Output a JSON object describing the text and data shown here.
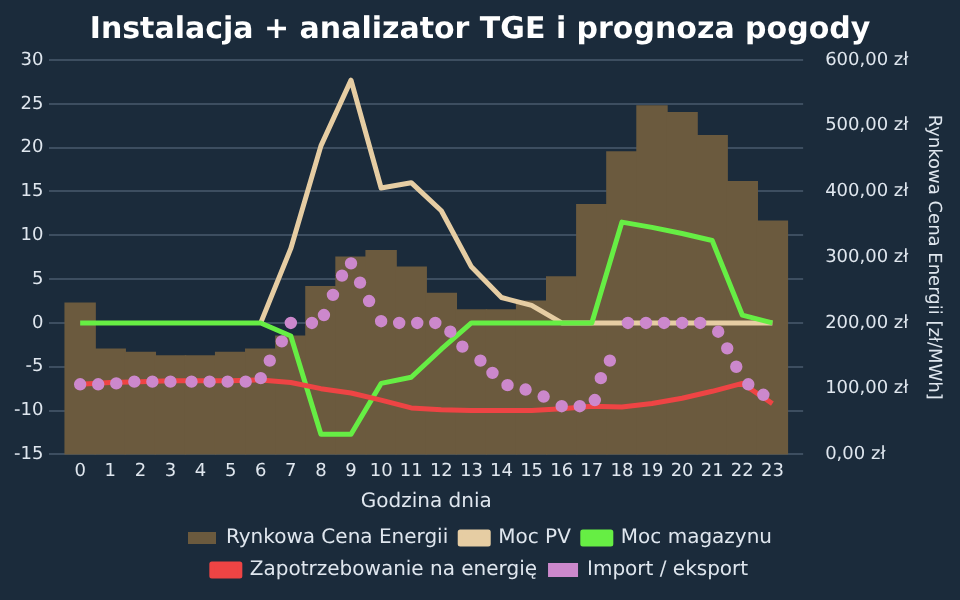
{
  "chart_data": {
    "type": "line",
    "title": "Instalacja + analizator TGE i prognoza pogody",
    "xlabel": "Godzina dnia",
    "y2label": "Rynkowa Cena Energii [zł/MWh]",
    "x": [
      0,
      1,
      2,
      3,
      4,
      5,
      6,
      7,
      8,
      9,
      10,
      11,
      12,
      13,
      14,
      15,
      16,
      17,
      18,
      19,
      20,
      21,
      22,
      23
    ],
    "xlim": [
      -0.5,
      23.5
    ],
    "xticks": [
      0,
      1,
      2,
      3,
      4,
      5,
      6,
      7,
      8,
      9,
      10,
      11,
      12,
      13,
      14,
      15,
      16,
      17,
      18,
      19,
      20,
      21,
      22,
      23
    ],
    "ylim": [
      -15,
      30
    ],
    "yticks": [
      -15,
      -10,
      -5,
      0,
      5,
      10,
      15,
      20,
      25,
      30
    ],
    "y2lim": [
      0,
      600
    ],
    "y2ticks": [
      {
        "value": 0,
        "label": "0,00 zł"
      },
      {
        "value": 100,
        "label": "100,00 zł"
      },
      {
        "value": 200,
        "label": "200,00 zł"
      },
      {
        "value": 300,
        "label": "300,00 zł"
      },
      {
        "value": 400,
        "label": "400,00 zł"
      },
      {
        "value": 500,
        "label": "500,00 zł"
      },
      {
        "value": 600,
        "label": "600,00 zł"
      }
    ],
    "grid": "y",
    "legend": "bottom",
    "series": [
      {
        "name": "Rynkowa Cena Energii",
        "type": "bar",
        "axis": "y2",
        "color": "#6b5a3e",
        "values": [
          230,
          160,
          155,
          150,
          150,
          155,
          160,
          180,
          255,
          300,
          310,
          285,
          245,
          220,
          220,
          233,
          270,
          380,
          460,
          530,
          520,
          485,
          415,
          355
        ]
      },
      {
        "name": "Moc PV",
        "marker": "none",
        "color": "#e6cda3",
        "values": [
          null,
          null,
          null,
          null,
          null,
          null,
          0,
          8.5,
          20.2,
          27.7,
          15.4,
          16,
          12.8,
          6.4,
          2.9,
          2,
          0,
          0,
          0,
          0,
          0,
          0,
          0,
          0
        ]
      },
      {
        "name": "Moc magazynu",
        "marker": "none",
        "color": "#66ee44",
        "values": [
          0,
          0,
          0,
          0,
          0,
          0,
          0,
          -1.5,
          -12.7,
          -12.7,
          -6.9,
          -6.2,
          -3,
          0,
          0,
          0,
          0,
          0,
          11.5,
          10.9,
          10.2,
          9.4,
          0.9,
          0
        ]
      },
      {
        "name": "Zapotrzebowanie na energię",
        "marker": "none",
        "color": "#ee4444",
        "values": [
          -7,
          -6.8,
          -6.7,
          -6.6,
          -6.6,
          -6.6,
          -6.5,
          -6.8,
          -7.5,
          -8,
          -8.8,
          -9.7,
          -9.9,
          -10,
          -10,
          -10,
          -9.8,
          -9.5,
          -9.6,
          -9.2,
          -8.6,
          -7.8,
          -6.9,
          -9.2
        ]
      },
      {
        "name": "Import / eksport",
        "type": "scatter",
        "marker": "circle",
        "color": "#cc88cc",
        "x": [
          0,
          0.6,
          1.2,
          1.8,
          2.4,
          3,
          3.7,
          4.3,
          4.9,
          5.5,
          6,
          6.3,
          6.7,
          7,
          7.7,
          8.1,
          8.4,
          8.7,
          9,
          9.3,
          9.6,
          10,
          10.6,
          11.2,
          11.8,
          12.3,
          12.7,
          13.3,
          13.7,
          14.2,
          14.8,
          15.4,
          16,
          16.6,
          17.1,
          17.3,
          17.6,
          18.2,
          18.8,
          19.4,
          20,
          20.6,
          21.2,
          21.5,
          21.8,
          22.2,
          22.7
        ],
        "values": [
          -7,
          -7,
          -6.9,
          -6.7,
          -6.7,
          -6.7,
          -6.7,
          -6.7,
          -6.7,
          -6.7,
          -6.3,
          -4.3,
          -2.1,
          0,
          0,
          0.9,
          3.2,
          5.4,
          6.8,
          4.6,
          2.5,
          0.2,
          0,
          0,
          0,
          -1,
          -2.7,
          -4.3,
          -5.7,
          -7.1,
          -7.6,
          -8.4,
          -9.5,
          -9.5,
          -8.8,
          -6.3,
          -4.3,
          0,
          0,
          0,
          0,
          0,
          -1,
          -2.9,
          -5,
          -7,
          -8.2
        ]
      }
    ]
  }
}
